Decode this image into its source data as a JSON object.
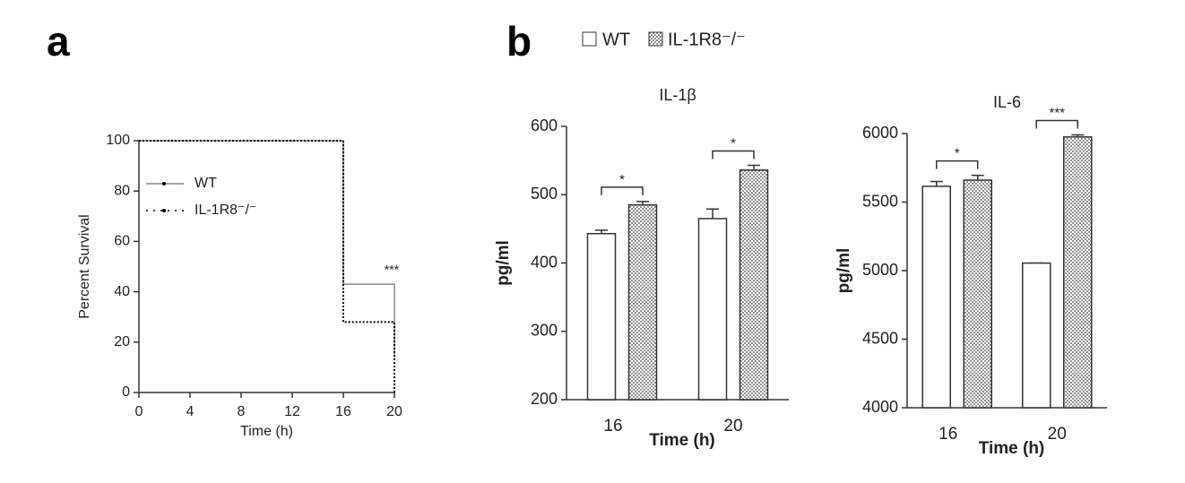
{
  "panels": [
    "a",
    "b"
  ],
  "chart_data": [
    {
      "type": "line",
      "xlabel": "Time (h)",
      "ylabel": "Percent Survival",
      "x": [
        0,
        16,
        16,
        20,
        20
      ],
      "series": [
        {
          "name": "WT",
          "color": "#888888",
          "style": "solid",
          "values": [
            100,
            100,
            43,
            43,
            14
          ]
        },
        {
          "name": "IL-1R8⁻/⁻",
          "color": "#000000",
          "style": "dotted",
          "values": [
            100,
            100,
            28,
            28,
            0
          ]
        }
      ],
      "xlim": [
        0,
        20
      ],
      "xticks": [
        0,
        4,
        8,
        12,
        16,
        20
      ],
      "ylim": [
        0,
        100
      ],
      "yticks": [
        0,
        20,
        40,
        60,
        80,
        100
      ],
      "annotation": "***"
    },
    {
      "type": "bar",
      "title": "IL-1β",
      "xlabel": "Time (h)",
      "ylabel": "pg/ml",
      "categories": [
        "16",
        "20"
      ],
      "series": [
        {
          "name": "WT",
          "fill": "white",
          "values": [
            443,
            465
          ],
          "errors": [
            5,
            14
          ]
        },
        {
          "name": "IL-1R8⁻/⁻",
          "fill": "dotted",
          "values": [
            485,
            536
          ],
          "errors": [
            5,
            7
          ]
        }
      ],
      "significance": [
        "*",
        "*"
      ],
      "ylim": [
        200,
        600
      ],
      "yticks": [
        200,
        300,
        400,
        500,
        600
      ]
    },
    {
      "type": "bar",
      "title": "IL-6",
      "xlabel": "Time (h)",
      "ylabel": "pg/ml",
      "categories": [
        "16",
        "20"
      ],
      "series": [
        {
          "fill": "white",
          "values": [
            5615,
            5055
          ],
          "errors": [
            35,
            0
          ]
        },
        {
          "fill": "dotted",
          "values": [
            5660,
            5975
          ],
          "errors": [
            35,
            15
          ]
        }
      ],
      "significance": [
        "*",
        "***"
      ],
      "ylim": [
        4000,
        6000
      ],
      "yticks": [
        4000,
        4500,
        5000,
        5500,
        6000
      ]
    }
  ]
}
